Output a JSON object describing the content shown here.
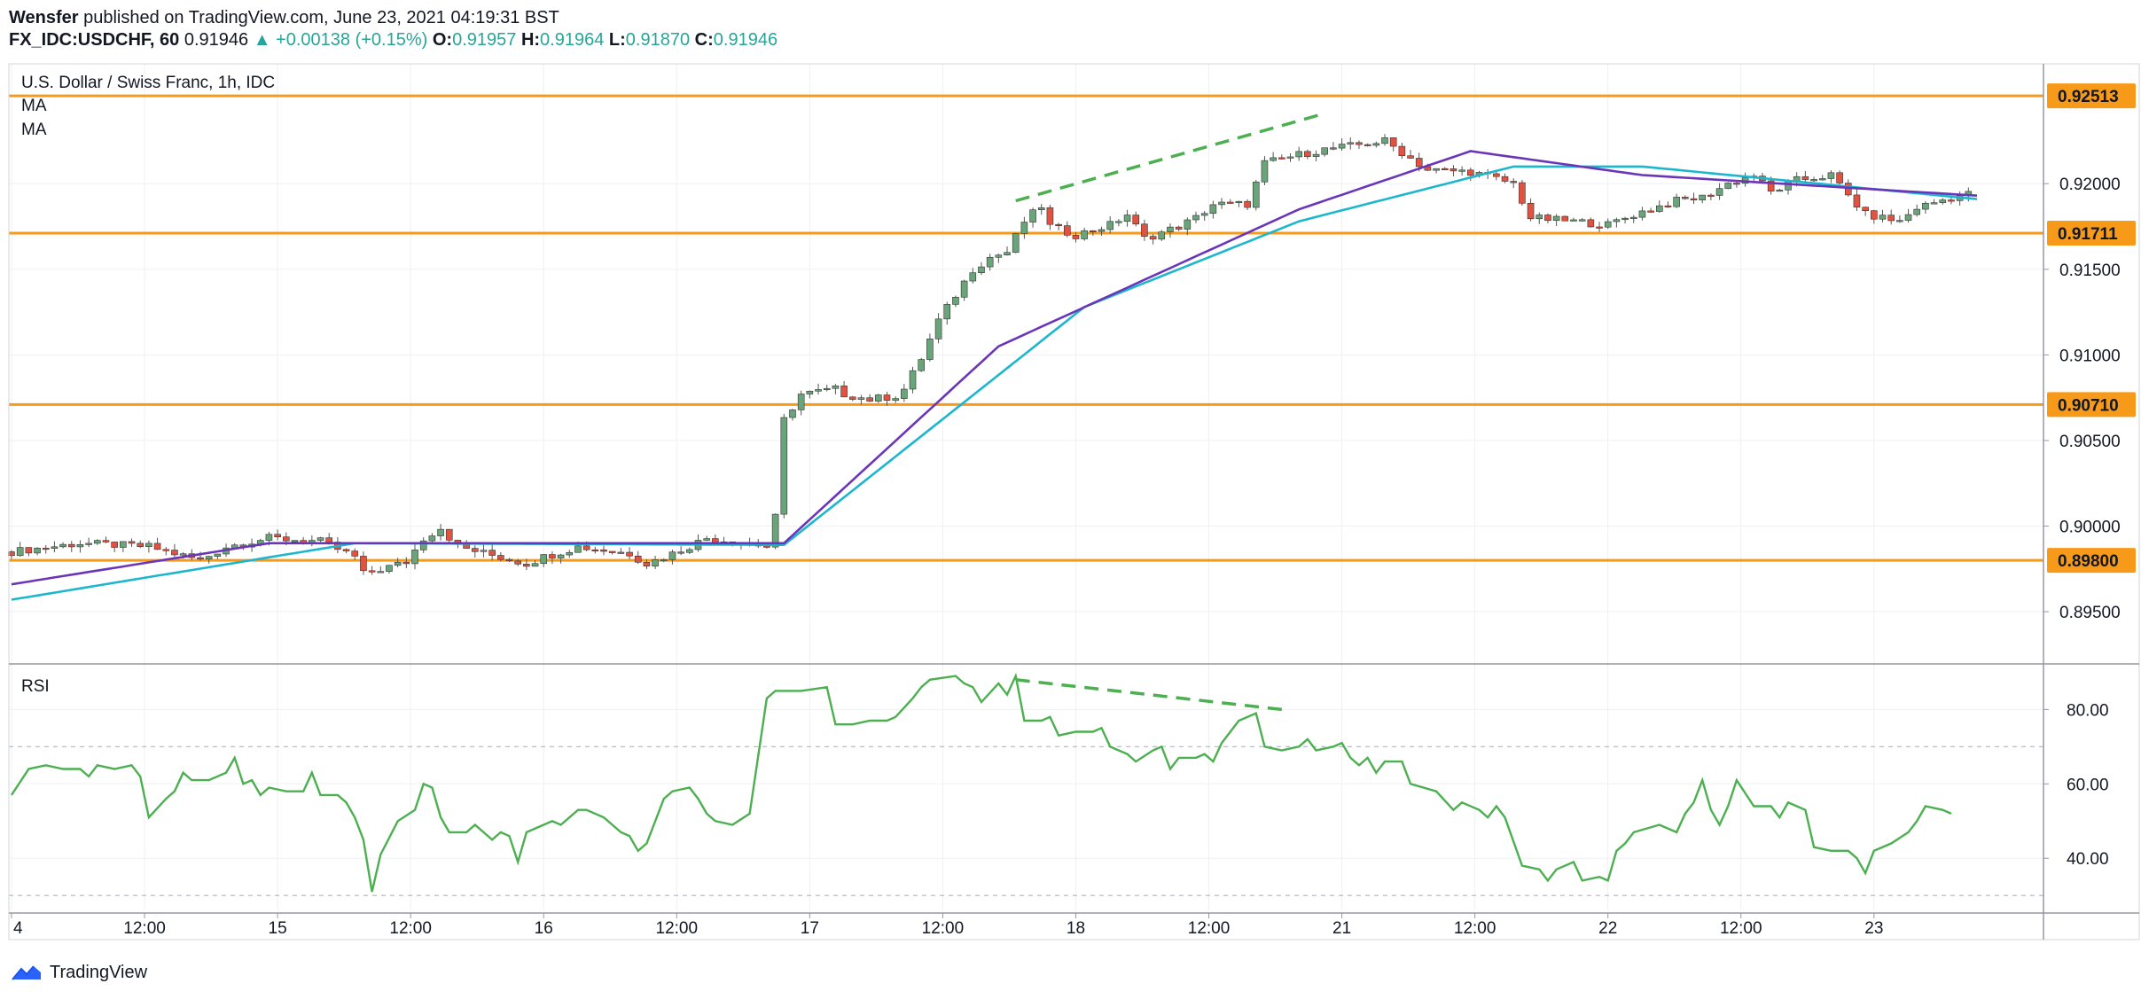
{
  "header": {
    "author": "Wensfer",
    "published_text": "published on TradingView.com, June 23, 2021 04:19:31 BST",
    "symbol": "FX_IDC:USDCHF, 60",
    "price": "0.91946",
    "change_arrow": "▲",
    "change": "+0.00138 (+0.15%)",
    "o_label": "O:",
    "o_value": "0.91957",
    "h_label": "H:",
    "h_value": "0.91964",
    "l_label": "L:",
    "l_value": "0.91870",
    "c_label": "C:",
    "c_value": "0.91946"
  },
  "price_pane": {
    "title": "U.S. Dollar / Swiss Franc, 1h, IDC",
    "ma1_label": "MA",
    "ma2_label": "MA"
  },
  "rsi_pane": {
    "title": "RSI"
  },
  "footer": {
    "brand": "TradingView"
  },
  "colors": {
    "up": "#26a69a",
    "candle_up": "#6aa57a",
    "candle_down": "#e15241",
    "ma_fast": "#6a35b8",
    "ma_slow": "#1cb6cf",
    "level": "#f79a1a",
    "rsi": "#4caf50",
    "divergence": "#4caf50",
    "grid": "#eef0f3"
  },
  "chart_data": [
    {
      "type": "candlestick",
      "title": "U.S. Dollar / Swiss Franc, 1h, IDC",
      "y_axis_ticks": [
        "0.92000",
        "0.91500",
        "0.91000",
        "0.90500",
        "0.90000",
        "0.89500"
      ],
      "ylim": [
        0.892,
        0.927
      ],
      "x_axis_ticks": [
        "4",
        "12:00",
        "15",
        "12:00",
        "16",
        "12:00",
        "17",
        "12:00",
        "18",
        "12:00",
        "21",
        "12:00",
        "22",
        "12:00",
        "23"
      ],
      "horizontal_levels": [
        "0.92513",
        "0.91711",
        "0.90710",
        "0.89800"
      ],
      "grid": true,
      "close_path": [
        [
          0,
          0.8985
        ],
        [
          8,
          0.899
        ],
        [
          16,
          0.8988
        ],
        [
          22,
          0.898
        ],
        [
          25,
          0.8988
        ],
        [
          30,
          0.8993
        ],
        [
          36,
          0.8991
        ],
        [
          40,
          0.8982
        ],
        [
          41,
          0.8972
        ],
        [
          46,
          0.8979
        ],
        [
          48,
          0.8993
        ],
        [
          50,
          0.8999
        ],
        [
          52,
          0.8988
        ],
        [
          56,
          0.8983
        ],
        [
          60,
          0.8978
        ],
        [
          62,
          0.8982
        ],
        [
          66,
          0.8988
        ],
        [
          72,
          0.8984
        ],
        [
          74,
          0.8978
        ],
        [
          78,
          0.8986
        ],
        [
          81,
          0.8993
        ],
        [
          86,
          0.899
        ],
        [
          88,
          0.8988
        ],
        [
          89,
          0.9005
        ],
        [
          90,
          0.9062
        ],
        [
          92,
          0.9077
        ],
        [
          96,
          0.908
        ],
        [
          97,
          0.9077
        ],
        [
          100,
          0.9074
        ],
        [
          103,
          0.9076
        ],
        [
          104,
          0.908
        ],
        [
          106,
          0.9098
        ],
        [
          108,
          0.912
        ],
        [
          112,
          0.915
        ],
        [
          114,
          0.9157
        ],
        [
          116,
          0.916
        ],
        [
          118,
          0.9178
        ],
        [
          120,
          0.9187
        ],
        [
          121,
          0.9175
        ],
        [
          124,
          0.917
        ],
        [
          128,
          0.9176
        ],
        [
          130,
          0.9182
        ],
        [
          132,
          0.9168
        ],
        [
          136,
          0.9175
        ],
        [
          138,
          0.918
        ],
        [
          140,
          0.9188
        ],
        [
          144,
          0.9188
        ],
        [
          146,
          0.9212
        ],
        [
          150,
          0.9217
        ],
        [
          153,
          0.922
        ],
        [
          156,
          0.9222
        ],
        [
          160,
          0.9225
        ],
        [
          165,
          0.9208
        ],
        [
          170,
          0.9207
        ],
        [
          175,
          0.92
        ],
        [
          177,
          0.918
        ],
        [
          182,
          0.9178
        ],
        [
          186,
          0.9176
        ],
        [
          189,
          0.9182
        ],
        [
          194,
          0.919
        ],
        [
          197,
          0.9192
        ],
        [
          200,
          0.92
        ],
        [
          203,
          0.9205
        ],
        [
          205,
          0.9195
        ],
        [
          208,
          0.9202
        ],
        [
          212,
          0.9205
        ],
        [
          214,
          0.9193
        ],
        [
          216,
          0.9182
        ],
        [
          220,
          0.9178
        ],
        [
          222,
          0.9186
        ],
        [
          226,
          0.9192
        ],
        [
          229,
          0.9195
        ]
      ],
      "ma_fast_path": [
        [
          0,
          0.8966
        ],
        [
          30,
          0.899
        ],
        [
          90,
          0.899
        ],
        [
          115,
          0.9105
        ],
        [
          150,
          0.9185
        ],
        [
          170,
          0.9219
        ],
        [
          190,
          0.9205
        ],
        [
          229,
          0.9193
        ]
      ],
      "ma_slow_path": [
        [
          0,
          0.8957
        ],
        [
          40,
          0.899
        ],
        [
          90,
          0.8989
        ],
        [
          125,
          0.9128
        ],
        [
          150,
          0.9178
        ],
        [
          175,
          0.921
        ],
        [
          190,
          0.921
        ],
        [
          229,
          0.9191
        ]
      ],
      "divergence_line": [
        [
          117,
          0.919
        ],
        [
          153,
          0.9241
        ]
      ],
      "total_bars": 230
    },
    {
      "type": "line",
      "title": "RSI",
      "y_axis_ticks": [
        "80.00",
        "60.00",
        "40.00"
      ],
      "ylim": [
        26,
        92
      ],
      "guide_levels": [
        70,
        30
      ],
      "rsi_path": [
        [
          0,
          57
        ],
        [
          2,
          64
        ],
        [
          4,
          65
        ],
        [
          6,
          64
        ],
        [
          8,
          64
        ],
        [
          9,
          62
        ],
        [
          10,
          65
        ],
        [
          12,
          64
        ],
        [
          14,
          65
        ],
        [
          15,
          62
        ],
        [
          16,
          51
        ],
        [
          18,
          56
        ],
        [
          19,
          58
        ],
        [
          20,
          63
        ],
        [
          21,
          61
        ],
        [
          23,
          61
        ],
        [
          25,
          63
        ],
        [
          26,
          67
        ],
        [
          27,
          60
        ],
        [
          28,
          61
        ],
        [
          29,
          57
        ],
        [
          30,
          59
        ],
        [
          32,
          58
        ],
        [
          34,
          58
        ],
        [
          35,
          63
        ],
        [
          36,
          57
        ],
        [
          38,
          57
        ],
        [
          39,
          55
        ],
        [
          40,
          51
        ],
        [
          41,
          45
        ],
        [
          42,
          31
        ],
        [
          43,
          41
        ],
        [
          45,
          50
        ],
        [
          47,
          53
        ],
        [
          48,
          60
        ],
        [
          49,
          59
        ],
        [
          50,
          51
        ],
        [
          51,
          47
        ],
        [
          53,
          47
        ],
        [
          54,
          49
        ],
        [
          56,
          45
        ],
        [
          57,
          47
        ],
        [
          58,
          46
        ],
        [
          59,
          39
        ],
        [
          60,
          47
        ],
        [
          62,
          49
        ],
        [
          63,
          50
        ],
        [
          64,
          49
        ],
        [
          66,
          53
        ],
        [
          67,
          53
        ],
        [
          69,
          51
        ],
        [
          71,
          47
        ],
        [
          72,
          46
        ],
        [
          73,
          42
        ],
        [
          74,
          44
        ],
        [
          76,
          56
        ],
        [
          77,
          58
        ],
        [
          79,
          59
        ],
        [
          80,
          56
        ],
        [
          81,
          52
        ],
        [
          82,
          50
        ],
        [
          84,
          49
        ],
        [
          86,
          52
        ],
        [
          88,
          83
        ],
        [
          89,
          85
        ],
        [
          90,
          85
        ],
        [
          91,
          85
        ],
        [
          92,
          85
        ],
        [
          95,
          86
        ],
        [
          96,
          76
        ],
        [
          98,
          76
        ],
        [
          100,
          77
        ],
        [
          101,
          77
        ],
        [
          102,
          77
        ],
        [
          103,
          78
        ],
        [
          105,
          83
        ],
        [
          106,
          86
        ],
        [
          107,
          88
        ],
        [
          110,
          89
        ],
        [
          111,
          87
        ],
        [
          112,
          86
        ],
        [
          113,
          82
        ],
        [
          115,
          87
        ],
        [
          116,
          84
        ],
        [
          117,
          89
        ],
        [
          118,
          77
        ],
        [
          120,
          77
        ],
        [
          121,
          78
        ],
        [
          122,
          73
        ],
        [
          124,
          74
        ],
        [
          126,
          74
        ],
        [
          127,
          75
        ],
        [
          128,
          70
        ],
        [
          130,
          68
        ],
        [
          131,
          66
        ],
        [
          133,
          69
        ],
        [
          134,
          70
        ],
        [
          135,
          64
        ],
        [
          136,
          67
        ],
        [
          138,
          67
        ],
        [
          139,
          68
        ],
        [
          140,
          66
        ],
        [
          141,
          71
        ],
        [
          143,
          77
        ],
        [
          145,
          79
        ],
        [
          146,
          70
        ],
        [
          148,
          69
        ],
        [
          150,
          70
        ],
        [
          151,
          72
        ],
        [
          152,
          69
        ],
        [
          154,
          70
        ],
        [
          155,
          71
        ],
        [
          156,
          67
        ],
        [
          157,
          65
        ],
        [
          158,
          67
        ],
        [
          159,
          63
        ],
        [
          160,
          66
        ],
        [
          162,
          66
        ],
        [
          163,
          60
        ],
        [
          166,
          58
        ],
        [
          168,
          53
        ],
        [
          169,
          55
        ],
        [
          171,
          53
        ],
        [
          172,
          51
        ],
        [
          173,
          54
        ],
        [
          174,
          51
        ],
        [
          176,
          38
        ],
        [
          178,
          37
        ],
        [
          179,
          34
        ],
        [
          180,
          37
        ],
        [
          182,
          39
        ],
        [
          183,
          34
        ],
        [
          185,
          35
        ],
        [
          186,
          34
        ],
        [
          187,
          42
        ],
        [
          188,
          44
        ],
        [
          189,
          47
        ],
        [
          192,
          49
        ],
        [
          194,
          47
        ],
        [
          195,
          52
        ],
        [
          196,
          55
        ],
        [
          197,
          61
        ],
        [
          198,
          53
        ],
        [
          199,
          49
        ],
        [
          200,
          54
        ],
        [
          201,
          61
        ],
        [
          203,
          54
        ],
        [
          205,
          54
        ],
        [
          206,
          51
        ],
        [
          207,
          55
        ],
        [
          208,
          54
        ],
        [
          209,
          53
        ],
        [
          210,
          43
        ],
        [
          212,
          42
        ],
        [
          214,
          42
        ],
        [
          215,
          40
        ],
        [
          216,
          36
        ],
        [
          217,
          42
        ],
        [
          219,
          44
        ],
        [
          221,
          47
        ],
        [
          222,
          50
        ],
        [
          223,
          54
        ],
        [
          225,
          53
        ],
        [
          226,
          52
        ]
      ],
      "divergence_line": [
        [
          117,
          88
        ],
        [
          148,
          80
        ]
      ]
    }
  ]
}
